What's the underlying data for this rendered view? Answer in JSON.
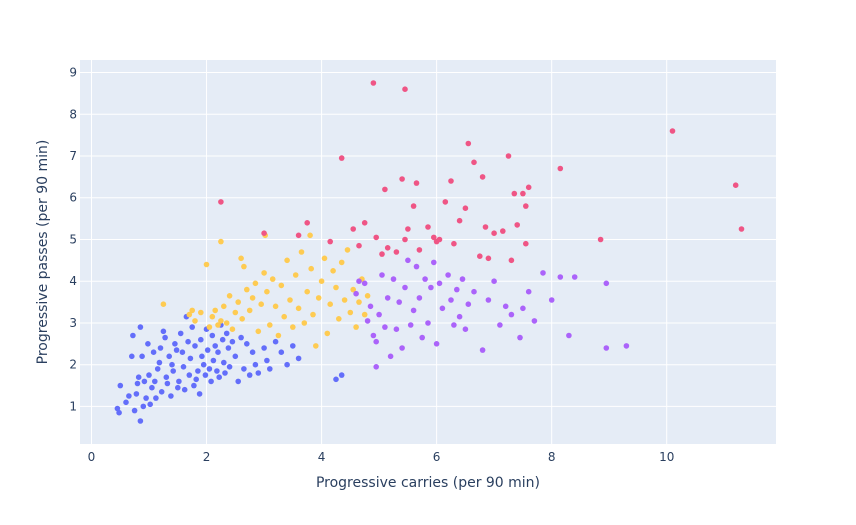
{
  "chart_data": {
    "type": "scatter",
    "title": "",
    "xlabel": "Progressive carries (per 90 min)",
    "ylabel": "Progressive passes (per 90 min)",
    "xlim": [
      -0.2,
      11.9
    ],
    "ylim": [
      0.1,
      9.3
    ],
    "xticks": [
      0,
      2,
      4,
      6,
      8,
      10
    ],
    "yticks": [
      1,
      2,
      3,
      4,
      5,
      6,
      7,
      8,
      9
    ],
    "grid": true,
    "legend": "none",
    "colors": {
      "plot_bg": "#e5ecf6",
      "grid": "#ffffff",
      "text": "#2a3f5f",
      "cluster_blue": "#636efa",
      "cluster_yellow": "#fecb52",
      "cluster_purple": "#ab63fa",
      "cluster_pink": "#ef5585"
    },
    "series": [
      {
        "color_key": "cluster_blue",
        "points": [
          [
            0.45,
            0.95
          ],
          [
            0.48,
            0.85
          ],
          [
            0.5,
            1.5
          ],
          [
            0.6,
            1.1
          ],
          [
            0.65,
            1.25
          ],
          [
            0.7,
            2.2
          ],
          [
            0.72,
            2.7
          ],
          [
            0.75,
            0.9
          ],
          [
            0.78,
            1.3
          ],
          [
            0.8,
            1.55
          ],
          [
            0.82,
            1.7
          ],
          [
            0.85,
            0.65
          ],
          [
            0.85,
            2.9
          ],
          [
            0.88,
            2.2
          ],
          [
            0.9,
            1.0
          ],
          [
            0.92,
            1.6
          ],
          [
            0.95,
            1.2
          ],
          [
            0.98,
            2.5
          ],
          [
            1.0,
            1.75
          ],
          [
            1.02,
            1.05
          ],
          [
            1.05,
            1.45
          ],
          [
            1.08,
            2.3
          ],
          [
            1.1,
            1.6
          ],
          [
            1.12,
            1.2
          ],
          [
            1.15,
            1.9
          ],
          [
            1.18,
            2.05
          ],
          [
            1.2,
            2.4
          ],
          [
            1.22,
            1.35
          ],
          [
            1.25,
            2.8
          ],
          [
            1.28,
            2.65
          ],
          [
            1.3,
            1.7
          ],
          [
            1.32,
            1.55
          ],
          [
            1.35,
            2.2
          ],
          [
            1.38,
            1.25
          ],
          [
            1.4,
            2.0
          ],
          [
            1.42,
            1.85
          ],
          [
            1.45,
            2.5
          ],
          [
            1.48,
            2.35
          ],
          [
            1.5,
            1.45
          ],
          [
            1.52,
            1.6
          ],
          [
            1.55,
            2.75
          ],
          [
            1.58,
            2.3
          ],
          [
            1.6,
            1.95
          ],
          [
            1.62,
            1.4
          ],
          [
            1.65,
            3.15
          ],
          [
            1.68,
            2.55
          ],
          [
            1.7,
            1.75
          ],
          [
            1.72,
            2.15
          ],
          [
            1.75,
            2.9
          ],
          [
            1.78,
            1.5
          ],
          [
            1.8,
            2.45
          ],
          [
            1.82,
            1.65
          ],
          [
            1.85,
            1.85
          ],
          [
            1.88,
            1.3
          ],
          [
            1.9,
            2.6
          ],
          [
            1.92,
            2.2
          ],
          [
            1.95,
            2.0
          ],
          [
            1.98,
            1.75
          ],
          [
            2.0,
            2.85
          ],
          [
            2.02,
            2.35
          ],
          [
            2.05,
            1.9
          ],
          [
            2.08,
            1.6
          ],
          [
            2.1,
            2.7
          ],
          [
            2.12,
            2.1
          ],
          [
            2.15,
            2.45
          ],
          [
            2.18,
            1.85
          ],
          [
            2.2,
            2.3
          ],
          [
            2.22,
            1.7
          ],
          [
            2.25,
            2.95
          ],
          [
            2.28,
            2.6
          ],
          [
            2.3,
            2.05
          ],
          [
            2.32,
            1.8
          ],
          [
            2.35,
            2.75
          ],
          [
            2.38,
            2.4
          ],
          [
            2.4,
            1.95
          ],
          [
            2.45,
            2.55
          ],
          [
            2.5,
            2.2
          ],
          [
            2.55,
            1.6
          ],
          [
            2.6,
            2.65
          ],
          [
            2.65,
            1.9
          ],
          [
            2.7,
            2.5
          ],
          [
            2.75,
            1.75
          ],
          [
            2.8,
            2.3
          ],
          [
            2.85,
            2.0
          ],
          [
            2.9,
            1.8
          ],
          [
            3.0,
            2.4
          ],
          [
            3.05,
            2.1
          ],
          [
            3.1,
            1.9
          ],
          [
            3.2,
            2.55
          ],
          [
            3.3,
            2.3
          ],
          [
            3.4,
            2.0
          ],
          [
            3.5,
            2.45
          ],
          [
            3.6,
            2.15
          ],
          [
            4.25,
            1.65
          ],
          [
            4.35,
            1.75
          ]
        ]
      },
      {
        "color_key": "cluster_yellow",
        "points": [
          [
            1.25,
            3.45
          ],
          [
            1.7,
            3.2
          ],
          [
            1.75,
            3.3
          ],
          [
            1.8,
            3.05
          ],
          [
            1.9,
            3.25
          ],
          [
            2.0,
            4.4
          ],
          [
            2.05,
            2.9
          ],
          [
            2.1,
            3.15
          ],
          [
            2.15,
            3.3
          ],
          [
            2.2,
            2.95
          ],
          [
            2.25,
            4.95
          ],
          [
            2.25,
            3.05
          ],
          [
            2.3,
            3.4
          ],
          [
            2.35,
            3.0
          ],
          [
            2.4,
            3.65
          ],
          [
            2.45,
            2.85
          ],
          [
            2.5,
            3.25
          ],
          [
            2.55,
            3.5
          ],
          [
            2.6,
            4.55
          ],
          [
            2.62,
            3.1
          ],
          [
            2.65,
            4.35
          ],
          [
            2.7,
            3.8
          ],
          [
            2.75,
            3.3
          ],
          [
            2.8,
            3.6
          ],
          [
            2.85,
            3.95
          ],
          [
            2.9,
            2.8
          ],
          [
            2.95,
            3.45
          ],
          [
            3.0,
            4.2
          ],
          [
            3.02,
            5.1
          ],
          [
            3.05,
            3.75
          ],
          [
            3.1,
            2.95
          ],
          [
            3.15,
            4.05
          ],
          [
            3.2,
            3.4
          ],
          [
            3.25,
            2.7
          ],
          [
            3.3,
            3.9
          ],
          [
            3.35,
            3.15
          ],
          [
            3.4,
            4.5
          ],
          [
            3.45,
            3.55
          ],
          [
            3.5,
            2.9
          ],
          [
            3.55,
            4.15
          ],
          [
            3.6,
            3.35
          ],
          [
            3.65,
            4.7
          ],
          [
            3.7,
            3.0
          ],
          [
            3.75,
            3.75
          ],
          [
            3.8,
            5.1
          ],
          [
            3.82,
            4.3
          ],
          [
            3.85,
            3.2
          ],
          [
            3.9,
            2.45
          ],
          [
            3.95,
            3.6
          ],
          [
            4.0,
            4.0
          ],
          [
            4.05,
            4.55
          ],
          [
            4.1,
            2.75
          ],
          [
            4.15,
            3.45
          ],
          [
            4.2,
            4.25
          ],
          [
            4.25,
            3.85
          ],
          [
            4.3,
            3.1
          ],
          [
            4.35,
            4.45
          ],
          [
            4.4,
            3.55
          ],
          [
            4.45,
            4.75
          ],
          [
            4.5,
            3.25
          ],
          [
            4.55,
            3.8
          ],
          [
            4.6,
            2.9
          ],
          [
            4.65,
            3.5
          ],
          [
            4.7,
            4.05
          ],
          [
            4.75,
            3.2
          ],
          [
            4.8,
            3.65
          ]
        ]
      },
      {
        "color_key": "cluster_purple",
        "points": [
          [
            4.6,
            3.7
          ],
          [
            4.65,
            4.0
          ],
          [
            4.75,
            3.95
          ],
          [
            4.8,
            3.05
          ],
          [
            4.85,
            3.4
          ],
          [
            4.9,
            2.7
          ],
          [
            4.95,
            2.55
          ],
          [
            4.95,
            1.95
          ],
          [
            5.0,
            3.2
          ],
          [
            5.05,
            4.15
          ],
          [
            5.1,
            2.9
          ],
          [
            5.15,
            3.6
          ],
          [
            5.2,
            2.2
          ],
          [
            5.25,
            4.05
          ],
          [
            5.3,
            2.85
          ],
          [
            5.35,
            3.5
          ],
          [
            5.4,
            2.4
          ],
          [
            5.45,
            3.85
          ],
          [
            5.5,
            4.5
          ],
          [
            5.55,
            2.95
          ],
          [
            5.6,
            3.3
          ],
          [
            5.65,
            4.35
          ],
          [
            5.7,
            3.6
          ],
          [
            5.75,
            2.65
          ],
          [
            5.8,
            4.05
          ],
          [
            5.85,
            3.0
          ],
          [
            5.9,
            3.85
          ],
          [
            5.95,
            4.45
          ],
          [
            6.0,
            2.5
          ],
          [
            6.05,
            3.95
          ],
          [
            6.1,
            3.35
          ],
          [
            6.2,
            4.15
          ],
          [
            6.25,
            3.55
          ],
          [
            6.3,
            2.95
          ],
          [
            6.35,
            3.8
          ],
          [
            6.4,
            3.15
          ],
          [
            6.45,
            4.05
          ],
          [
            6.5,
            2.85
          ],
          [
            6.55,
            3.45
          ],
          [
            6.65,
            3.75
          ],
          [
            6.8,
            2.35
          ],
          [
            6.9,
            3.55
          ],
          [
            7.0,
            4.0
          ],
          [
            7.1,
            2.95
          ],
          [
            7.2,
            3.4
          ],
          [
            7.3,
            3.2
          ],
          [
            7.45,
            2.65
          ],
          [
            7.5,
            3.35
          ],
          [
            7.6,
            3.75
          ],
          [
            7.7,
            3.05
          ],
          [
            7.85,
            4.2
          ],
          [
            8.0,
            3.55
          ],
          [
            8.15,
            4.1
          ],
          [
            8.3,
            2.7
          ],
          [
            8.4,
            4.1
          ],
          [
            8.95,
            2.4
          ],
          [
            8.95,
            3.95
          ],
          [
            9.3,
            2.45
          ]
        ]
      },
      {
        "color_key": "cluster_pink",
        "points": [
          [
            2.25,
            5.9
          ],
          [
            3.0,
            5.15
          ],
          [
            3.6,
            5.1
          ],
          [
            3.75,
            5.4
          ],
          [
            4.15,
            4.95
          ],
          [
            4.35,
            6.95
          ],
          [
            4.55,
            5.25
          ],
          [
            4.65,
            4.85
          ],
          [
            4.75,
            5.4
          ],
          [
            4.9,
            8.75
          ],
          [
            4.95,
            5.05
          ],
          [
            5.05,
            4.65
          ],
          [
            5.1,
            6.2
          ],
          [
            5.15,
            4.8
          ],
          [
            5.3,
            4.7
          ],
          [
            5.4,
            6.45
          ],
          [
            5.45,
            8.6
          ],
          [
            5.5,
            5.25
          ],
          [
            5.6,
            5.8
          ],
          [
            5.65,
            6.35
          ],
          [
            5.7,
            4.75
          ],
          [
            5.85,
            5.3
          ],
          [
            5.95,
            5.05
          ],
          [
            6.0,
            4.95
          ],
          [
            6.15,
            5.9
          ],
          [
            6.25,
            6.4
          ],
          [
            6.3,
            4.9
          ],
          [
            6.4,
            5.45
          ],
          [
            6.5,
            5.75
          ],
          [
            6.55,
            7.3
          ],
          [
            6.65,
            6.85
          ],
          [
            6.75,
            4.6
          ],
          [
            6.8,
            6.5
          ],
          [
            6.85,
            5.3
          ],
          [
            7.0,
            5.15
          ],
          [
            7.15,
            5.2
          ],
          [
            7.25,
            7.0
          ],
          [
            7.35,
            6.1
          ],
          [
            7.4,
            5.35
          ],
          [
            7.5,
            6.1
          ],
          [
            7.55,
            5.8
          ],
          [
            7.6,
            6.25
          ],
          [
            8.15,
            6.7
          ],
          [
            8.85,
            5.0
          ],
          [
            10.1,
            7.6
          ],
          [
            11.2,
            6.3
          ],
          [
            11.3,
            5.25
          ],
          [
            7.3,
            4.5
          ],
          [
            7.55,
            4.9
          ],
          [
            6.9,
            4.55
          ],
          [
            5.45,
            5.0
          ],
          [
            6.05,
            5.0
          ]
        ]
      }
    ]
  }
}
